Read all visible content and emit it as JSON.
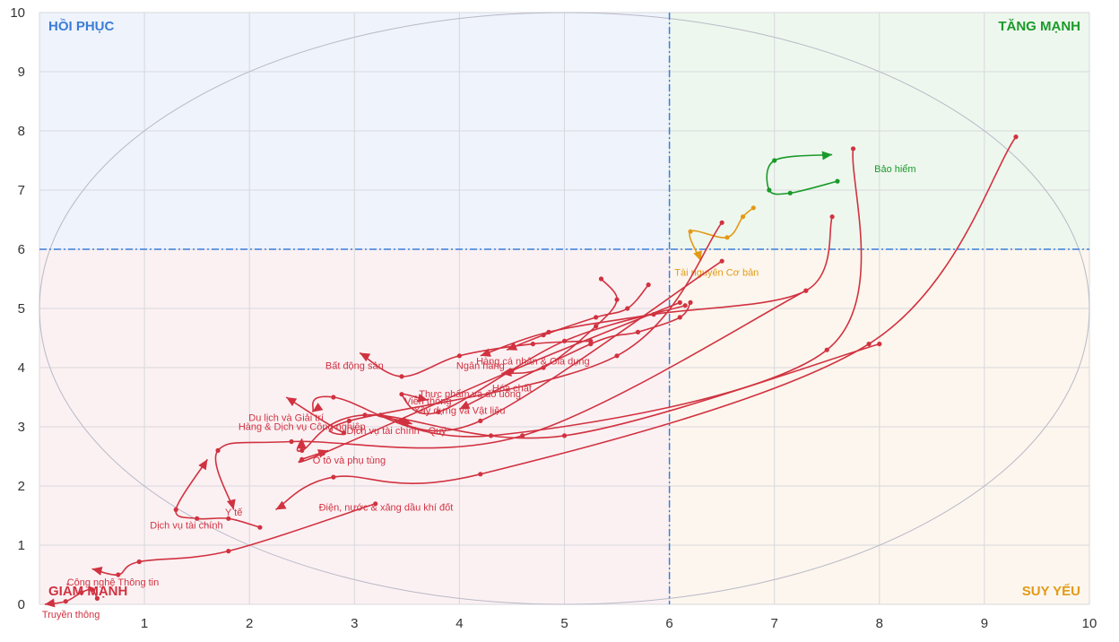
{
  "chart_data": {
    "type": "scatter",
    "title": "",
    "xlabel": "",
    "ylabel": "",
    "xlim": [
      0,
      10
    ],
    "ylim": [
      0,
      10
    ],
    "x_ticks": [
      "1",
      "2",
      "3",
      "4",
      "5",
      "6",
      "7",
      "8",
      "9",
      "10"
    ],
    "y_ticks": [
      "0",
      "1",
      "2",
      "3",
      "4",
      "5",
      "6",
      "7",
      "8",
      "9",
      "10"
    ],
    "grid": true,
    "threshold": {
      "x": 6,
      "y": 6
    },
    "quadrants": [
      {
        "label": "HỒI PHỤC",
        "color": "#3b7dd8",
        "bg": "#eef3fc"
      },
      {
        "label": "TĂNG MẠNH",
        "color": "#1a9a2a",
        "bg": "#eef7ee"
      },
      {
        "label": "GIẢM MẠNH",
        "color": "#d13240",
        "bg": "#fbf1f3"
      },
      {
        "label": "SUY YẾU",
        "color": "#e39a16",
        "bg": "#fcf6ee"
      }
    ],
    "colors": {
      "red": "#d13240",
      "green": "#1a9a2a",
      "orange": "#e39a16",
      "threshold": "#3b7dd8",
      "grid": "#d8d8dc"
    },
    "series": [
      {
        "name": "Bảo hiểm",
        "color": "#1a9a2a",
        "points": [
          [
            7.6,
            7.15
          ],
          [
            7.15,
            6.95
          ],
          [
            6.95,
            7.0
          ],
          [
            7.0,
            7.5
          ],
          [
            7.55,
            7.6
          ]
        ],
        "label_at": [
          8.15,
          7.3
        ]
      },
      {
        "name": "Tài nguyên Cơ bản",
        "color": "#e39a16",
        "points": [
          [
            6.8,
            6.7
          ],
          [
            6.7,
            6.55
          ],
          [
            6.55,
            6.2
          ],
          [
            6.2,
            6.3
          ],
          [
            6.3,
            5.8
          ]
        ],
        "label_at": [
          6.45,
          5.55
        ]
      },
      {
        "name": "Hàng cá nhân & Gia dụng",
        "color": "#d13240",
        "points": [
          [
            7.55,
            6.55
          ],
          [
            7.3,
            5.3
          ],
          [
            5.85,
            4.9
          ],
          [
            4.85,
            4.6
          ],
          [
            4.2,
            4.2
          ]
        ],
        "label_at": [
          4.7,
          4.05
        ]
      },
      {
        "name": "Ngân hàng",
        "color": "#d13240",
        "points": [
          [
            5.8,
            5.4
          ],
          [
            5.6,
            5.0
          ],
          [
            5.3,
            4.85
          ],
          [
            4.8,
            4.55
          ],
          [
            4.45,
            4.3
          ]
        ],
        "label_at": [
          4.2,
          3.98
        ]
      },
      {
        "name": "Hóa chất",
        "color": "#d13240",
        "points": [
          [
            5.35,
            5.5
          ],
          [
            5.5,
            5.15
          ],
          [
            5.3,
            4.7
          ],
          [
            4.8,
            4.0
          ],
          [
            4.4,
            3.9
          ]
        ],
        "label_at": [
          4.5,
          3.6
        ]
      },
      {
        "name": "Bất động sản",
        "color": "#d13240",
        "points": [
          [
            5.25,
            4.45
          ],
          [
            4.7,
            4.4
          ],
          [
            4.0,
            4.2
          ],
          [
            3.45,
            3.85
          ],
          [
            3.05,
            4.25
          ]
        ],
        "label_at": [
          3.0,
          3.98
        ]
      },
      {
        "name": "Thực phẩm và đồ uống",
        "color": "#d13240",
        "points": [
          [
            6.2,
            5.1
          ],
          [
            6.1,
            4.85
          ],
          [
            5.7,
            4.6
          ],
          [
            5.25,
            4.4
          ],
          [
            4.0,
            3.3
          ]
        ],
        "label_at": [
          4.1,
          3.5
        ]
      },
      {
        "name": "Viễn thông",
        "color": "#d13240",
        "points": [
          [
            6.15,
            5.05
          ],
          [
            5.0,
            4.45
          ],
          [
            3.8,
            3.25
          ],
          [
            3.45,
            3.55
          ],
          [
            3.7,
            3.45
          ]
        ],
        "label_at": [
          3.7,
          3.38
        ]
      },
      {
        "name": "Xây dựng và Vật liệu",
        "color": "#d13240",
        "points": [
          [
            6.5,
            5.8
          ],
          [
            4.2,
            3.1
          ],
          [
            3.25,
            3.2
          ],
          [
            3.45,
            3.1
          ],
          [
            3.55,
            3.05
          ]
        ],
        "label_at": [
          4.0,
          3.22
        ]
      },
      {
        "name": "Du lịch và Giải trí",
        "color": "#d13240",
        "points": [
          [
            7.75,
            7.7
          ],
          [
            7.5,
            4.3
          ],
          [
            4.3,
            2.85
          ],
          [
            2.8,
            3.5
          ],
          [
            2.6,
            3.25
          ]
        ],
        "label_at": [
          2.35,
          3.1
        ]
      },
      {
        "name": "Dịch vụ tài chính - Quỹ",
        "color": "#d13240",
        "points": [
          [
            8.0,
            4.4
          ],
          [
            5.0,
            2.85
          ],
          [
            3.1,
            3.2
          ],
          [
            2.5,
            2.6
          ],
          [
            2.5,
            2.8
          ]
        ],
        "label_at": [
          3.4,
          2.88
        ]
      },
      {
        "name": "Hàng & Dịch vụ Công nghiệp",
        "color": "#d13240",
        "points": [
          [
            6.5,
            6.45
          ],
          [
            5.5,
            4.2
          ],
          [
            2.95,
            3.1
          ],
          [
            2.9,
            2.9
          ],
          [
            2.35,
            3.5
          ]
        ],
        "label_at": [
          2.5,
          2.95
        ]
      },
      {
        "name": "Ô tô và phụ tùng",
        "color": "#d13240",
        "points": [
          [
            6.1,
            5.1
          ],
          [
            4.5,
            3.95
          ],
          [
            2.7,
            2.55
          ],
          [
            2.5,
            2.45
          ],
          [
            2.75,
            2.6
          ]
        ],
        "label_at": [
          2.95,
          2.38
        ]
      },
      {
        "name": "Y tế",
        "color": "#d13240",
        "points": [
          [
            7.3,
            5.3
          ],
          [
            4.6,
            2.85
          ],
          [
            2.4,
            2.75
          ],
          [
            1.7,
            2.6
          ],
          [
            1.85,
            1.6
          ]
        ],
        "label_at": [
          1.85,
          1.5
        ]
      },
      {
        "name": "Điện, nước & xăng dầu khí đốt",
        "color": "#d13240",
        "points": [
          [
            9.3,
            7.9
          ],
          [
            7.9,
            4.4
          ],
          [
            4.2,
            2.2
          ],
          [
            2.8,
            2.15
          ],
          [
            2.25,
            1.6
          ]
        ],
        "label_at": [
          3.3,
          1.58
        ]
      },
      {
        "name": "Dịch vụ tài chính",
        "color": "#d13240",
        "points": [
          [
            2.1,
            1.3
          ],
          [
            1.8,
            1.45
          ],
          [
            1.5,
            1.45
          ],
          [
            1.3,
            1.6
          ],
          [
            1.6,
            2.45
          ]
        ],
        "label_at": [
          1.4,
          1.28
        ]
      },
      {
        "name": "Công nghệ Thông tin",
        "color": "#d13240",
        "points": [
          [
            3.2,
            1.7
          ],
          [
            1.8,
            0.9
          ],
          [
            0.95,
            0.72
          ],
          [
            0.75,
            0.5
          ],
          [
            0.5,
            0.6
          ]
        ],
        "label_at": [
          0.7,
          0.32
        ]
      },
      {
        "name": "Truyền thông",
        "color": "#d13240",
        "points": [
          [
            0.55,
            0.1
          ],
          [
            0.5,
            0.25
          ],
          [
            0.4,
            0.2
          ],
          [
            0.25,
            0.05
          ],
          [
            0.05,
            0.0
          ]
        ],
        "label_at": [
          0.3,
          -0.23
        ]
      }
    ]
  }
}
